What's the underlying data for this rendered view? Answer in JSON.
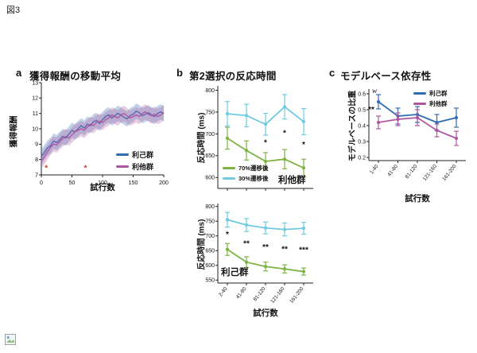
{
  "page": {
    "figure_label": "図3"
  },
  "icons": {
    "bottom_left": "broken-image-icon"
  },
  "colors": {
    "selfish_blue": "#2f6db5",
    "altruistic_magenta": "#b0569f",
    "green_70": "#7cb342",
    "cyan_30": "#6ecbe0",
    "marker_red": "#cc3a28",
    "axis": "#222222"
  },
  "chart_data": [
    {
      "id": "panel-a",
      "type": "line",
      "panel_letter": "a",
      "title": "獲得報酬の移動平均",
      "xlabel": "試行数",
      "ylabel": "獲得報酬",
      "xlim": [
        0,
        200
      ],
      "ylim": [
        7,
        13
      ],
      "xticks": [
        0,
        50,
        100,
        150,
        200
      ],
      "yticks": [
        7,
        8,
        9,
        10,
        11,
        12,
        13
      ],
      "x": [
        0,
        5,
        10,
        15,
        20,
        25,
        30,
        35,
        40,
        45,
        50,
        55,
        60,
        65,
        70,
        75,
        80,
        85,
        90,
        95,
        100,
        105,
        110,
        115,
        120,
        125,
        130,
        135,
        140,
        145,
        150,
        155,
        160,
        165,
        170,
        175,
        180,
        185,
        190,
        195,
        200
      ],
      "series": [
        {
          "name": "利己群",
          "color": "#2f6db5",
          "band": 0.5,
          "values": [
            8.2,
            8.45,
            8.75,
            8.9,
            9.2,
            9.1,
            9.3,
            9.5,
            9.4,
            9.65,
            9.9,
            9.8,
            10.0,
            10.2,
            10.05,
            10.3,
            10.2,
            10.45,
            10.55,
            10.35,
            10.6,
            10.8,
            10.9,
            10.7,
            10.85,
            11.0,
            10.9,
            10.75,
            10.65,
            10.85,
            10.95,
            11.15,
            11.05,
            10.85,
            10.95,
            11.05,
            10.9,
            10.8,
            11.0,
            11.1,
            11.0
          ]
        },
        {
          "name": "利他群",
          "color": "#b0569f",
          "band": 0.5,
          "values": [
            7.9,
            8.2,
            8.5,
            8.8,
            9.0,
            8.95,
            9.15,
            9.35,
            9.5,
            9.4,
            9.6,
            9.8,
            9.9,
            10.0,
            9.9,
            10.1,
            10.3,
            10.2,
            10.4,
            10.5,
            10.4,
            10.6,
            10.7,
            10.9,
            10.8,
            10.7,
            10.9,
            11.0,
            10.85,
            10.7,
            10.8,
            10.9,
            10.8,
            11.0,
            11.1,
            10.95,
            10.85,
            10.95,
            10.8,
            10.9,
            11.05
          ]
        }
      ],
      "markers": [
        {
          "x": 8,
          "y": 7.45,
          "symbol": "*",
          "color": "#cc3a28"
        },
        {
          "x": 72,
          "y": 7.45,
          "symbol": "*",
          "color": "#cc3a28"
        }
      ],
      "legend_position": "bottom-right"
    },
    {
      "id": "panel-b-top",
      "type": "line",
      "panel_letter": "b",
      "title": "第2選択の反応時間",
      "group_label": "利他群",
      "ylabel": "反応時間 (ms)",
      "categories": [
        "2-40",
        "41-80",
        "81-120",
        "121-160",
        "161-200"
      ],
      "ylim": [
        575,
        810
      ],
      "yticks": [
        600,
        650,
        700,
        750,
        800
      ],
      "series": [
        {
          "name": "70%遷移後",
          "color": "#7cb342",
          "values": [
            690,
            662,
            637,
            642,
            622
          ],
          "errors": [
            25,
            22,
            20,
            22,
            20
          ]
        },
        {
          "name": "30%遷移後",
          "color": "#6ecbe0",
          "values": [
            746,
            742,
            722,
            762,
            728
          ],
          "errors": [
            28,
            26,
            25,
            28,
            30
          ]
        }
      ],
      "significance": [
        "",
        "",
        "*",
        "*",
        "*"
      ],
      "legend_position": "bottom-left"
    },
    {
      "id": "panel-b-bottom",
      "type": "line",
      "group_label": "利己群",
      "ylabel": "反応時間 (ms)",
      "xlabel": "試行数",
      "categories": [
        "2-40",
        "41-80",
        "81-120",
        "121-160",
        "161-200"
      ],
      "ylim": [
        540,
        810
      ],
      "yticks": [
        550,
        600,
        650,
        700,
        750,
        800
      ],
      "series": [
        {
          "name": "70%遷移後",
          "color": "#7cb342",
          "values": [
            654,
            611,
            596,
            588,
            579
          ],
          "errors": [
            20,
            18,
            15,
            14,
            12
          ]
        },
        {
          "name": "30%遷移後",
          "color": "#6ecbe0",
          "values": [
            755,
            737,
            727,
            722,
            726
          ],
          "errors": [
            25,
            22,
            20,
            22,
            20
          ]
        }
      ],
      "significance": [
        "*",
        "**",
        "**",
        "**",
        "***"
      ]
    },
    {
      "id": "panel-c",
      "type": "line",
      "panel_letter": "c",
      "title": "モデルベース依存性",
      "ylabel": "モデルベースの比重",
      "xlabel": "試行数",
      "annotation": "w",
      "categories": [
        "1-40",
        "41-80",
        "81-120",
        "121-160",
        "161-200"
      ],
      "ylim": [
        0.18,
        0.63
      ],
      "yticks": [
        0.2,
        0.3,
        0.4,
        0.5,
        0.6
      ],
      "series": [
        {
          "name": "利己群",
          "color": "#2f6db5",
          "values": [
            0.55,
            0.46,
            0.47,
            0.42,
            0.45
          ],
          "errors": [
            0.045,
            0.05,
            0.05,
            0.05,
            0.06
          ]
        },
        {
          "name": "利他群",
          "color": "#b0569f",
          "values": [
            0.42,
            0.44,
            0.45,
            0.37,
            0.32
          ],
          "errors": [
            0.04,
            0.04,
            0.05,
            0.04,
            0.045
          ]
        }
      ],
      "significance": [
        "**",
        "",
        "",
        "",
        ""
      ],
      "legend_position": "top-right"
    }
  ]
}
